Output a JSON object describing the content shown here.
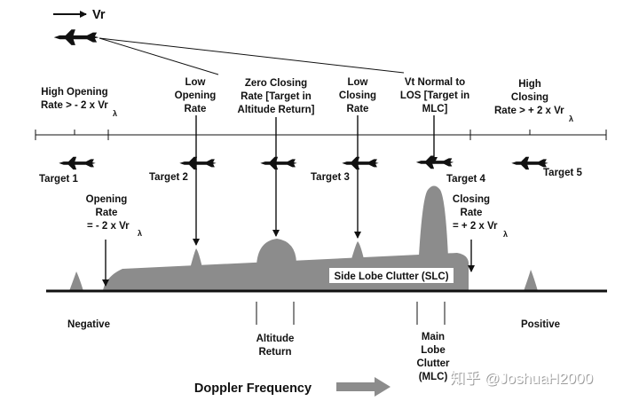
{
  "header": {
    "velocity_label": "Vr"
  },
  "regions": {
    "high_opening": {
      "line1": "High Opening",
      "line2": "Rate > - 2 x Vr",
      "suffix": "λ"
    },
    "low_opening": {
      "line1": "Low",
      "line2": "Opening",
      "line3": "Rate"
    },
    "zero_closing": {
      "line1": "Zero Closing",
      "line2": "Rate [Target in",
      "line3": "Altitude Return]"
    },
    "low_closing": {
      "line1": "Low",
      "line2": "Closing",
      "line3": "Rate"
    },
    "vt_normal": {
      "line1": "Vt Normal to",
      "line2": "LOS [Target in",
      "line3": "MLC]"
    },
    "high_closing": {
      "line1": "High",
      "line2": "Closing",
      "line3": "Rate > + 2 x Vr",
      "suffix": "λ"
    }
  },
  "targets": {
    "t1": "Target 1",
    "t2": "Target 2",
    "t3": "Target 3",
    "t4": "Target 4",
    "t5": "Target 5"
  },
  "opening_rate": {
    "line1": "Opening",
    "line2": "Rate",
    "line3": "= - 2 x Vr",
    "suffix": "λ"
  },
  "closing_rate": {
    "line1": "Closing",
    "line2": "Rate",
    "line3": "= + 2 x Vr",
    "suffix": "λ"
  },
  "slc_label": "Side Lobe Clutter (SLC)",
  "axis": {
    "negative": "Negative",
    "positive": "Positive",
    "altitude_return": {
      "line1": "Altitude",
      "line2": "Return"
    },
    "main_lobe_clutter": {
      "line1": "Main",
      "line2": "Lobe",
      "line3": "Clutter",
      "line4": "(MLC)"
    }
  },
  "footer": {
    "doppler_frequency": "Doppler Frequency",
    "watermark": "知乎 @JoshuaH2000"
  },
  "colors": {
    "clutter": "#8c8c8c",
    "arrow_gray": "#8c8c8c",
    "ink": "#111111"
  }
}
